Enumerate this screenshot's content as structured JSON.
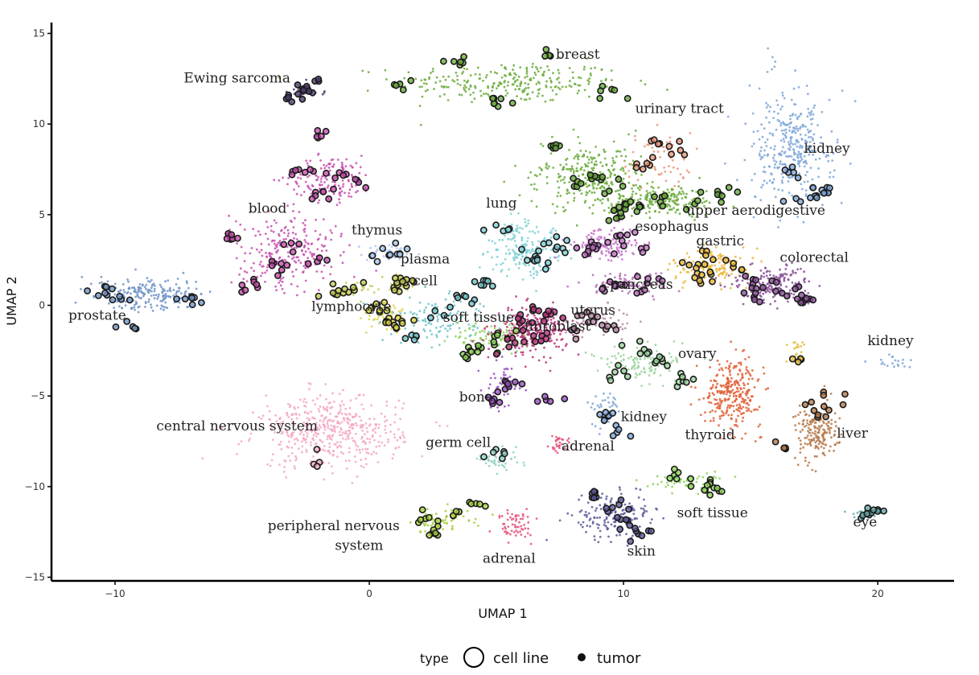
{
  "chart_data": {
    "type": "scatter",
    "xlabel": "UMAP 1",
    "ylabel": "UMAP 2",
    "xlim": [
      -12.5,
      23.0
    ],
    "ylim": [
      -15.2,
      15.6
    ],
    "xticks": [
      -10,
      0,
      10,
      20
    ],
    "yticks": [
      -15,
      -10,
      -5,
      0,
      5,
      10,
      15
    ],
    "xtick_labels": [
      "−10",
      "0",
      "10",
      "20"
    ],
    "ytick_labels": [
      "−15",
      "−10",
      "−5",
      "0",
      "5",
      "10",
      "15"
    ],
    "grid": false,
    "legend": {
      "title": "type",
      "position": "bottom",
      "entries": [
        {
          "label": "cell line",
          "shape": "open-circle"
        },
        {
          "label": "tumor",
          "shape": "filled-circle"
        }
      ]
    },
    "clusters": [
      {
        "label": "breast",
        "label_pos": [
          8.2,
          13.6
        ],
        "color": "#6aab3b",
        "cx": 5.5,
        "cy": 12.3,
        "sx": 3.2,
        "sy": 0.8,
        "n": 260,
        "lines": [
          [
            3.5,
            13.4
          ],
          [
            7.0,
            13.8
          ],
          [
            9.5,
            11.6
          ],
          [
            1.5,
            12.2
          ],
          [
            5.0,
            11.2
          ]
        ]
      },
      {
        "label": "Ewing sarcoma",
        "label_pos": [
          -5.2,
          12.3
        ],
        "color": "#4b3a6a",
        "cx": -2.6,
        "cy": 11.8,
        "sx": 0.5,
        "sy": 0.35,
        "n": 25,
        "lines": [
          [
            -3.0,
            11.5
          ],
          [
            -2.2,
            12.1
          ],
          [
            -2.6,
            11.8
          ]
        ]
      },
      {
        "label": "urinary tract",
        "label_pos": [
          12.2,
          10.6
        ],
        "color": "#e8977a",
        "cx": 11.4,
        "cy": 8.0,
        "sx": 0.9,
        "sy": 1.1,
        "n": 70,
        "lines": [
          [
            12.2,
            8.6
          ],
          [
            10.8,
            7.6
          ],
          [
            11.2,
            9.2
          ]
        ]
      },
      {
        "label": "kidney",
        "label_pos": [
          18.0,
          8.4
        ],
        "color": "#7ea6d8",
        "cx": 16.5,
        "cy": 8.8,
        "sx": 1.2,
        "sy": 2.2,
        "n": 330,
        "lines": [
          [
            16.6,
            7.4
          ],
          [
            17.4,
            6.2
          ],
          [
            18.0,
            6.4
          ],
          [
            16.8,
            6.0
          ]
        ]
      },
      {
        "label": "blood",
        "label_pos": [
          -4.0,
          5.1
        ],
        "color": "#c84fae",
        "cx": -3.2,
        "cy": 3.0,
        "sx": 1.6,
        "sy": 1.5,
        "n": 250,
        "lines": [
          [
            -5.5,
            3.8
          ],
          [
            -3.5,
            2.2
          ],
          [
            -2.0,
            2.4
          ],
          [
            -4.6,
            1.1
          ],
          [
            -3.0,
            3.2
          ]
        ]
      },
      {
        "label": "blood",
        "label_pos": null,
        "color": "#c84fae",
        "cx": -1.5,
        "cy": 7.0,
        "sx": 1.2,
        "sy": 0.9,
        "n": 150,
        "lines": [
          [
            -2.8,
            7.3
          ],
          [
            -1.2,
            7.2
          ],
          [
            -0.4,
            6.8
          ],
          [
            -1.9,
            6.1
          ],
          [
            -2.0,
            9.3
          ]
        ]
      },
      {
        "label": "thymus",
        "label_pos": [
          0.3,
          3.9
        ],
        "color": "#a9c8ee",
        "cx": 0.8,
        "cy": 2.9,
        "sx": 0.9,
        "sy": 0.35,
        "n": 40,
        "lines": [
          [
            0.2,
            2.8
          ],
          [
            1.2,
            3.0
          ]
        ]
      },
      {
        "label": "plasma",
        "label_pos": [
          2.2,
          2.3
        ],
        "color": "#c6cc52",
        "cx": 1.2,
        "cy": 1.2,
        "sx": 0.3,
        "sy": 0.3,
        "n": 25,
        "lines": [
          [
            1.2,
            1.2
          ],
          [
            1.4,
            1.4
          ]
        ]
      },
      {
        "label": "cell",
        "label_pos": [
          2.2,
          1.1
        ],
        "color": "#c6cc52",
        "cx": -0.5,
        "cy": 0.9,
        "sx": 0.8,
        "sy": 0.4,
        "n": 30,
        "lines": [
          [
            -0.7,
            0.8
          ],
          [
            -1.5,
            0.7
          ]
        ]
      },
      {
        "label": "lymphocyte",
        "label_pos": [
          -0.7,
          -0.3
        ],
        "color": "#d9d44b",
        "cx": 0.6,
        "cy": -0.6,
        "sx": 0.5,
        "sy": 0.5,
        "n": 60,
        "lines": [
          [
            0.4,
            -0.2
          ],
          [
            0.8,
            -0.8
          ],
          [
            1.2,
            -1.0
          ]
        ]
      },
      {
        "label": "",
        "label_pos": null,
        "color": "#6ec3c9",
        "cx": 2.8,
        "cy": -0.8,
        "sx": 1.5,
        "sy": 0.9,
        "n": 120,
        "lines": [
          [
            1.8,
            -1.6
          ],
          [
            2.8,
            -0.6
          ],
          [
            3.8,
            0.4
          ],
          [
            4.5,
            1.2
          ]
        ]
      },
      {
        "label": "lung",
        "label_pos": [
          5.2,
          5.4
        ],
        "color": "#7fd0d6",
        "cx": 6.2,
        "cy": 3.1,
        "sx": 1.0,
        "sy": 1.1,
        "n": 180,
        "lines": [
          [
            5.2,
            4.3
          ],
          [
            6.3,
            2.8
          ],
          [
            7.0,
            3.5
          ],
          [
            6.8,
            2.4
          ],
          [
            7.6,
            3.2
          ]
        ]
      },
      {
        "label": "",
        "label_pos": null,
        "color": "#6aab3b",
        "cx": 8.6,
        "cy": 7.1,
        "sx": 1.5,
        "sy": 1.3,
        "n": 280,
        "lines": [
          [
            7.2,
            8.6
          ],
          [
            8.8,
            7.0
          ],
          [
            9.6,
            6.4
          ],
          [
            10.2,
            5.6
          ],
          [
            8.0,
            6.8
          ]
        ]
      },
      {
        "label": "upper aerodigestive",
        "label_pos": [
          15.2,
          5.0
        ],
        "color": "#6aab3b",
        "cx": 11.6,
        "cy": 5.8,
        "sx": 1.5,
        "sy": 0.6,
        "n": 200,
        "lines": [
          [
            10.4,
            5.4
          ],
          [
            11.4,
            5.9
          ],
          [
            12.8,
            5.7
          ],
          [
            14.0,
            6.2
          ],
          [
            9.8,
            5.0
          ]
        ]
      },
      {
        "label": "esophagus",
        "label_pos": [
          11.9,
          4.1
        ],
        "color": "#c472c8",
        "cx": 9.3,
        "cy": 3.3,
        "sx": 1.0,
        "sy": 0.6,
        "n": 120,
        "lines": [
          [
            9.0,
            3.3
          ],
          [
            9.8,
            3.7
          ],
          [
            10.4,
            2.8
          ],
          [
            8.6,
            3.0
          ]
        ]
      },
      {
        "label": "gastric",
        "label_pos": [
          13.8,
          3.3
        ],
        "color": "#e7b73a",
        "cx": 13.5,
        "cy": 2.2,
        "sx": 1.2,
        "sy": 0.7,
        "n": 140,
        "lines": [
          [
            12.8,
            2.2
          ],
          [
            13.5,
            2.6
          ],
          [
            14.5,
            2.0
          ],
          [
            13.2,
            1.4
          ]
        ]
      },
      {
        "label": "colorectal",
        "label_pos": [
          17.5,
          2.4
        ],
        "color": "#8a4e98",
        "cx": 15.8,
        "cy": 1.2,
        "sx": 1.2,
        "sy": 0.7,
        "n": 180,
        "lines": [
          [
            15.2,
            1.4
          ],
          [
            16.2,
            1.0
          ],
          [
            16.8,
            0.5
          ],
          [
            15.0,
            0.6
          ],
          [
            17.0,
            0.2
          ]
        ]
      },
      {
        "label": "pancreas",
        "label_pos": [
          10.7,
          0.9
        ],
        "color": "#b86cb9",
        "cx": 10.2,
        "cy": 1.2,
        "sx": 1.0,
        "sy": 0.5,
        "n": 90,
        "lines": [
          [
            9.8,
            1.2
          ],
          [
            10.6,
            0.9
          ],
          [
            11.2,
            1.6
          ],
          [
            9.2,
            1.0
          ]
        ]
      },
      {
        "label": "uterus",
        "label_pos": [
          8.8,
          -0.5
        ],
        "color": "#b98aa6",
        "cx": 8.8,
        "cy": -0.9,
        "sx": 0.9,
        "sy": 0.6,
        "n": 70,
        "lines": [
          [
            8.6,
            -0.8
          ],
          [
            9.4,
            -1.2
          ],
          [
            8.2,
            -1.4
          ]
        ]
      },
      {
        "label": "soft tissue",
        "label_pos": [
          4.3,
          -0.9
        ],
        "color": "#8fd45a",
        "cx": 4.8,
        "cy": -1.8,
        "sx": 1.1,
        "sy": 0.6,
        "n": 90,
        "lines": [
          [
            4.4,
            -2.4
          ],
          [
            5.2,
            -1.6
          ],
          [
            3.9,
            -2.6
          ]
        ]
      },
      {
        "label": "fibroblast",
        "label_pos": [
          7.4,
          -1.4
        ],
        "color": "#b7327a",
        "cx": 6.4,
        "cy": -1.4,
        "sx": 1.0,
        "sy": 0.9,
        "n": 240,
        "lines": [
          [
            6.0,
            -1.0
          ],
          [
            6.6,
            -1.8
          ],
          [
            7.2,
            -0.6
          ],
          [
            5.6,
            -2.2
          ],
          [
            6.8,
            -0.2
          ]
        ]
      },
      {
        "label": "ovary",
        "label_pos": [
          12.9,
          -2.9
        ],
        "color": "#9bd49c",
        "cx": 10.8,
        "cy": -3.2,
        "sx": 1.3,
        "sy": 0.8,
        "n": 120,
        "lines": [
          [
            10.6,
            -2.4
          ],
          [
            11.4,
            -3.2
          ],
          [
            9.8,
            -3.8
          ],
          [
            12.4,
            -4.2
          ]
        ]
      },
      {
        "label": "bone",
        "label_pos": [
          4.2,
          -5.3
        ],
        "color": "#9a4fc3",
        "cx": 5.2,
        "cy": -4.4,
        "sx": 0.6,
        "sy": 0.9,
        "n": 50,
        "lines": [
          [
            4.9,
            -5.0
          ],
          [
            5.5,
            -4.4
          ],
          [
            7.2,
            -5.2
          ]
        ]
      },
      {
        "label": "central nervous system",
        "label_pos": [
          -5.2,
          -6.9
        ],
        "color": "#f3a8c6",
        "cx": -1.5,
        "cy": -7.0,
        "sx": 2.0,
        "sy": 1.4,
        "n": 470,
        "lines": [
          [
            -2.1,
            -8.5
          ]
        ]
      },
      {
        "label": "germ cell",
        "label_pos": [
          3.5,
          -7.8
        ],
        "color": "#8fd1c3",
        "cx": 5.3,
        "cy": -8.5,
        "sx": 0.8,
        "sy": 0.5,
        "n": 45,
        "lines": [
          [
            5.0,
            -8.2
          ]
        ]
      },
      {
        "label": "adrenal",
        "label_pos": [
          8.6,
          -8.0
        ],
        "color": "#e85077",
        "cx": 7.5,
        "cy": -7.6,
        "sx": 0.3,
        "sy": 0.5,
        "n": 30,
        "lines": []
      },
      {
        "label": "kidney",
        "label_pos": [
          10.8,
          -6.4
        ],
        "color": "#7ea6d8",
        "cx": 9.3,
        "cy": -5.8,
        "sx": 0.4,
        "sy": 0.7,
        "n": 40,
        "lines": [
          [
            9.2,
            -6.0
          ],
          [
            9.8,
            -7.0
          ]
        ]
      },
      {
        "label": "thyroid",
        "label_pos": [
          13.4,
          -7.4
        ],
        "color": "#e15f35",
        "cx": 14.3,
        "cy": -4.8,
        "sx": 0.8,
        "sy": 1.3,
        "n": 280,
        "lines": []
      },
      {
        "label": "liver",
        "label_pos": [
          19.0,
          -7.3
        ],
        "color": "#b5784a",
        "cx": 17.6,
        "cy": -7.0,
        "sx": 0.6,
        "sy": 1.1,
        "n": 180,
        "lines": [
          [
            17.4,
            -5.6
          ],
          [
            17.8,
            -6.2
          ],
          [
            18.2,
            -5.0
          ],
          [
            16.2,
            -7.8
          ]
        ]
      },
      {
        "label": "kidney",
        "label_pos": [
          20.5,
          -2.2
        ],
        "color": "#7ea6d8",
        "cx": 20.6,
        "cy": -3.1,
        "sx": 0.5,
        "sy": 0.25,
        "n": 20,
        "lines": []
      },
      {
        "label": "",
        "label_pos": null,
        "color": "#e0bc3a",
        "cx": 16.8,
        "cy": -2.5,
        "sx": 0.3,
        "sy": 0.7,
        "n": 18,
        "lines": [
          [
            16.9,
            -3.0
          ]
        ]
      },
      {
        "label": "prostate",
        "label_pos": [
          -10.7,
          -0.8
        ],
        "color": "#6f93c6",
        "cx": -8.6,
        "cy": 0.6,
        "sx": 1.5,
        "sy": 0.7,
        "n": 210,
        "lines": [
          [
            -10.5,
            0.9
          ],
          [
            -9.3,
            -1.2
          ],
          [
            -7.1,
            0.3
          ],
          [
            -9.7,
            0.4
          ]
        ]
      },
      {
        "label": "soft tissue",
        "label_pos": [
          13.5,
          -11.7
        ],
        "color": "#8fd45a",
        "cx": 12.6,
        "cy": -9.8,
        "sx": 1.1,
        "sy": 0.35,
        "n": 55,
        "lines": [
          [
            12.2,
            -9.4
          ],
          [
            13.2,
            -10.0
          ],
          [
            13.6,
            -10.2
          ]
        ]
      },
      {
        "label": "eye",
        "label_pos": [
          19.5,
          -12.2
        ],
        "color": "#63a8a6",
        "cx": 19.4,
        "cy": -11.5,
        "sx": 0.4,
        "sy": 0.2,
        "n": 15,
        "lines": [
          [
            19.5,
            -11.5
          ],
          [
            20.0,
            -11.4
          ]
        ]
      },
      {
        "label": "skin",
        "label_pos": [
          10.7,
          -13.8
        ],
        "color": "#5a5a9a",
        "cx": 9.7,
        "cy": -11.7,
        "sx": 1.1,
        "sy": 0.8,
        "n": 160,
        "lines": [
          [
            8.8,
            -10.4
          ],
          [
            9.6,
            -11.2
          ],
          [
            10.2,
            -12.0
          ],
          [
            10.8,
            -12.6
          ]
        ]
      },
      {
        "label": "peripheral nervous",
        "label_pos": [
          -1.4,
          -12.4
        ],
        "color": "#a6cf3c",
        "cx": 3.0,
        "cy": -11.9,
        "sx": 0.9,
        "sy": 0.5,
        "n": 60,
        "lines": [
          [
            2.2,
            -11.8
          ],
          [
            2.6,
            -12.6
          ],
          [
            3.4,
            -11.6
          ],
          [
            4.2,
            -11.0
          ]
        ]
      },
      {
        "label": "system",
        "label_pos": [
          -0.4,
          -13.5
        ],
        "color": "#a6cf3c",
        "cx": null,
        "cy": null,
        "sx": 0,
        "sy": 0,
        "n": 0,
        "lines": []
      },
      {
        "label": "adrenal",
        "label_pos": [
          5.5,
          -14.2
        ],
        "color": "#e85077",
        "cx": 5.8,
        "cy": -12.2,
        "sx": 0.5,
        "sy": 0.6,
        "n": 60,
        "lines": []
      }
    ]
  }
}
